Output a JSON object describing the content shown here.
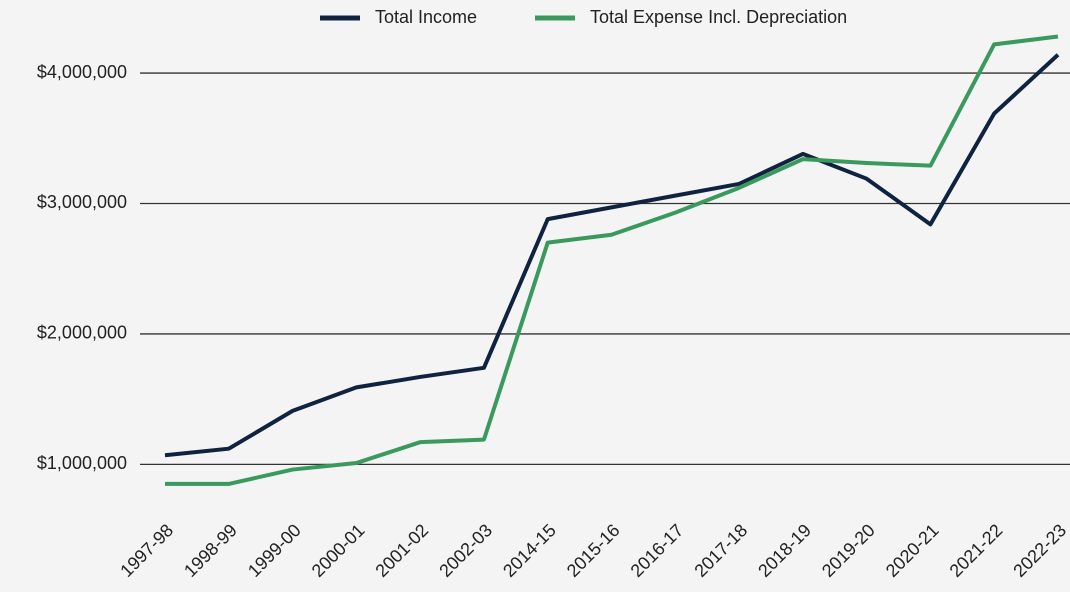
{
  "chart_data": {
    "type": "line",
    "categories": [
      "1997-98",
      "1998-99",
      "1999-00",
      "2000-01",
      "2001-02",
      "2002-03",
      "2014-15",
      "2015-16",
      "2016-17",
      "2017-18",
      "2018-19",
      "2019-20",
      "2020-21",
      "2021-22",
      "2022-23"
    ],
    "series": [
      {
        "name": "Total Income",
        "color": "#0f2340",
        "values": [
          1070000,
          1120000,
          1410000,
          1590000,
          1670000,
          1740000,
          2880000,
          2970000,
          3060000,
          3150000,
          3380000,
          3190000,
          2840000,
          3690000,
          4140000
        ]
      },
      {
        "name": "Total Expense Incl. Depreciation",
        "color": "#3a9a5e",
        "values": [
          850000,
          850000,
          960000,
          1010000,
          1170000,
          1190000,
          2700000,
          2760000,
          2930000,
          3120000,
          3340000,
          3310000,
          3290000,
          4220000,
          4280000
        ]
      }
    ],
    "ylim": [
      650000,
      4330000
    ],
    "yticks": [
      {
        "value": 1000000,
        "label": "$1,000,000"
      },
      {
        "value": 2000000,
        "label": "$2,000,000"
      },
      {
        "value": 3000000,
        "label": "$3,000,000"
      },
      {
        "value": 4000000,
        "label": "$4,000,000"
      }
    ],
    "grid": true,
    "legend": "top"
  }
}
